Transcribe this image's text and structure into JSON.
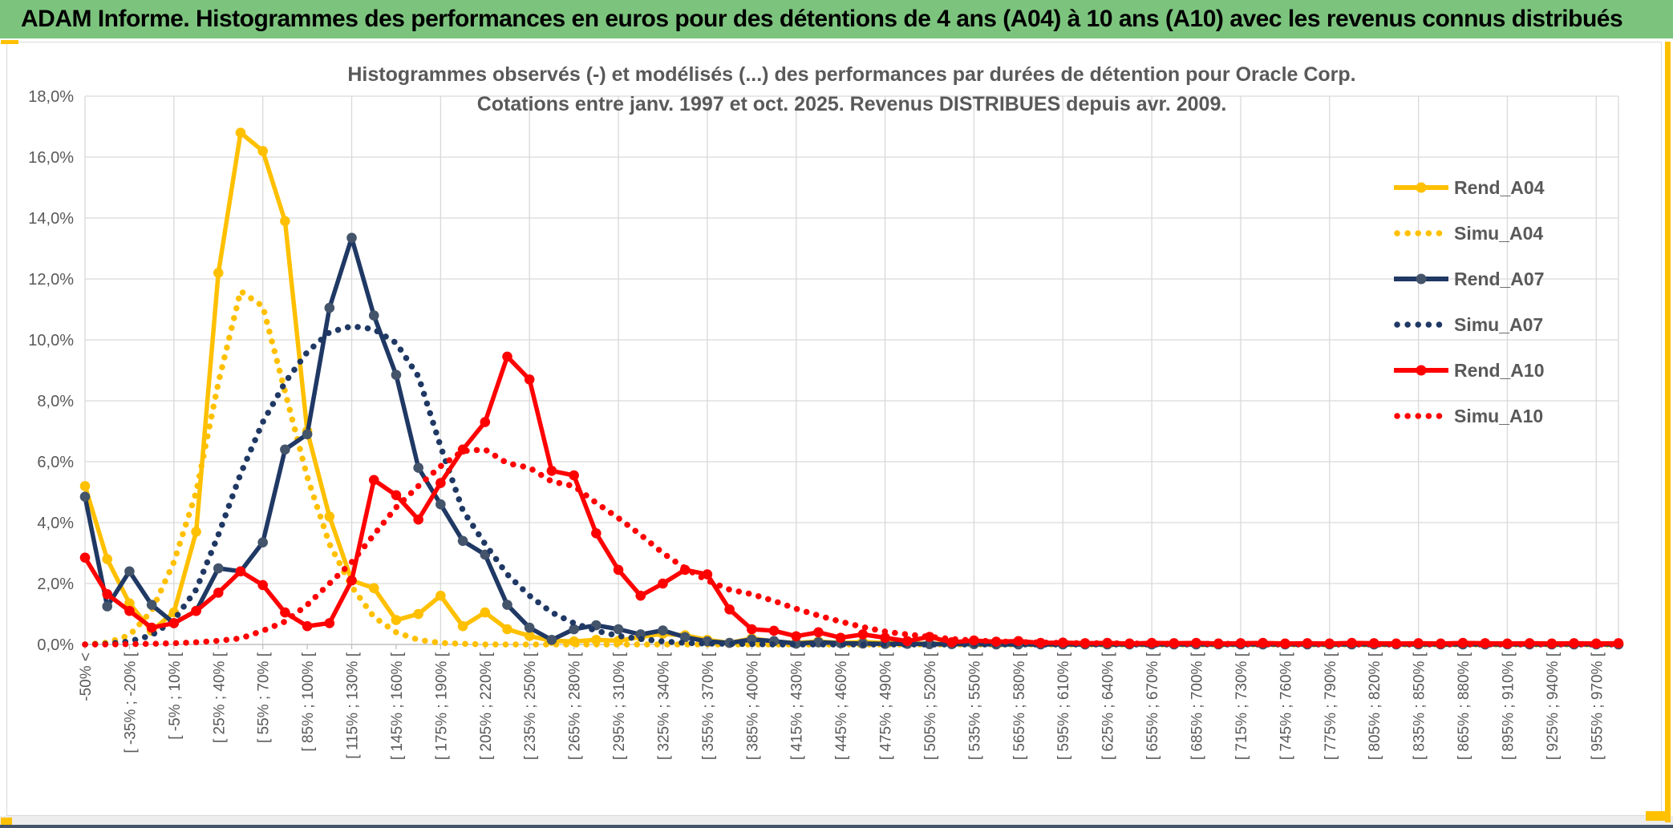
{
  "header": {
    "title": "ADAM Informe. Histogrammes des performances en euros pour des détentions de 4 ans (A04) à 10 ans (A10) avec les revenus connus distribués"
  },
  "page": {
    "accent_color": "#ffc000",
    "header_bg": "#7cc47e",
    "bottom_bar_color": "#44546a"
  },
  "chart_data": {
    "type": "line",
    "title_lines": [
      "Histogrammes observés (-) et modélisés (...) des performances par durées de détention pour Oracle Corp.",
      "Cotations entre janv. 1997 et oct. 2025. Revenus DISTRIBUES depuis avr. 2009."
    ],
    "grid": "on",
    "legend_position": "right",
    "y_axis": {
      "min": 0,
      "max": 18,
      "step": 2,
      "ticks": [
        "0,0%",
        "2,0%",
        "4,0%",
        "6,0%",
        "8,0%",
        "10,0%",
        "12,0%",
        "14,0%",
        "16,0%",
        "18,0%"
      ]
    },
    "x_axis_note": "70 bins of 15% width; every second bin is labeled",
    "categories": [
      "-50% <",
      "[ -35% ; -20% [",
      "[ -5% ; 10% [",
      "[ 25% ; 40% [",
      "[ 55% ; 70% [",
      "[ 85% ; 100% [",
      "[ 115% ; 130% [",
      "[ 145% ; 160% [",
      "[ 175% ; 190% [",
      "[ 205% ; 220% [",
      "[ 235% ; 250% [",
      "[ 265% ; 280% [",
      "[ 295% ; 310% [",
      "[ 325% ; 340% [",
      "[ 355% ; 370% [",
      "[ 385% ; 400% [",
      "[ 415% ; 430% [",
      "[ 445% ; 460% [",
      "[ 475% ; 490% [",
      "[ 505% ; 520% [",
      "[ 535% ; 550% [",
      "[ 565% ; 580% [",
      "[ 595% ; 610% [",
      "[ 625% ; 640% [",
      "[ 655% ; 670% [",
      "[ 685% ; 700% [",
      "[ 715% ; 730% [",
      "[ 745% ; 760% [",
      "[ 775% ; 790% [",
      "[ 805% ; 820% [",
      "[ 835% ; 850% [",
      "[ 865% ; 880% [",
      "[ 895% ; 910% [",
      "[ 925% ; 940% [",
      "[ 955% ; 970% ["
    ],
    "series": [
      {
        "name": "Rend_A04",
        "style": "solid",
        "color": "#ffc000",
        "marker_color": "#ffc000",
        "values": [
          5.2,
          2.8,
          1.35,
          0.45,
          1.05,
          3.7,
          12.2,
          16.8,
          16.2,
          13.9,
          7.0,
          4.2,
          2.1,
          1.85,
          0.8,
          1.0,
          1.6,
          0.6,
          1.05,
          0.5,
          0.28,
          0.12,
          0.1,
          0.15,
          0.12,
          0.25,
          0.35,
          0.3,
          0.15,
          0.05,
          0.2,
          0.1,
          0.05,
          0.1,
          0.05,
          0.08,
          0.05,
          0.03,
          0.03,
          0.02,
          0.02,
          0.02,
          0.02,
          0.02,
          0.02,
          0.02,
          0.02,
          0.02,
          0.02,
          0.02,
          0.02,
          0.02,
          0.02,
          0.02,
          0.02,
          0.02,
          0.02,
          0.02,
          0.02,
          0.02,
          0.02,
          0.02,
          0.02,
          0.02,
          0.02,
          0.02,
          0.02,
          0.02,
          0.02,
          0.02
        ]
      },
      {
        "name": "Simu_A04",
        "style": "dotted",
        "color": "#ffc000",
        "values": [
          0,
          0.06,
          0.3,
          1.1,
          2.7,
          5.0,
          8.6,
          11.6,
          11.1,
          8.3,
          5.5,
          3.3,
          1.9,
          0.9,
          0.4,
          0.15,
          0.05,
          0.02,
          0,
          0,
          0,
          0,
          0,
          0,
          0,
          0,
          0,
          0,
          0,
          0,
          0,
          0,
          0,
          0,
          0,
          0,
          0,
          0,
          0,
          0,
          0,
          0,
          0,
          0,
          0,
          0,
          0,
          0,
          0,
          0,
          0,
          0,
          0,
          0,
          0,
          0,
          0,
          0,
          0,
          0,
          0,
          0,
          0,
          0,
          0,
          0,
          0,
          0,
          0,
          0
        ]
      },
      {
        "name": "Rend_A07",
        "style": "solid",
        "color": "#1f3864",
        "marker_color": "#44546a",
        "values": [
          4.85,
          1.25,
          2.4,
          1.3,
          0.7,
          1.1,
          2.5,
          2.4,
          3.35,
          6.4,
          6.9,
          11.05,
          13.35,
          10.8,
          8.85,
          5.8,
          4.6,
          3.4,
          2.95,
          1.3,
          0.55,
          0.15,
          0.5,
          0.63,
          0.5,
          0.33,
          0.46,
          0.24,
          0.1,
          0.05,
          0.16,
          0.11,
          0.03,
          0.07,
          0.04,
          0.03,
          0.02,
          0.02,
          0.01,
          0.01,
          0.01,
          0,
          0,
          0,
          0,
          0,
          0,
          0,
          0,
          0,
          0,
          0,
          0,
          0,
          0,
          0,
          0,
          0,
          0,
          0,
          0,
          0,
          0,
          0,
          0,
          0,
          0,
          0,
          0,
          0
        ]
      },
      {
        "name": "Simu_A07",
        "style": "dotted",
        "color": "#1f3864",
        "values": [
          0,
          0.02,
          0.1,
          0.3,
          0.8,
          1.8,
          3.6,
          5.6,
          7.3,
          8.6,
          9.6,
          10.25,
          10.45,
          10.35,
          9.9,
          8.8,
          6.5,
          4.4,
          3.3,
          2.3,
          1.6,
          1.05,
          0.7,
          0.45,
          0.28,
          0.18,
          0.1,
          0.05,
          0.03,
          0.02,
          0.01,
          0,
          0,
          0,
          0,
          0,
          0,
          0,
          0,
          0,
          0,
          0,
          0,
          0,
          0,
          0,
          0,
          0,
          0,
          0,
          0,
          0,
          0,
          0,
          0,
          0,
          0,
          0,
          0,
          0,
          0,
          0,
          0,
          0,
          0,
          0,
          0,
          0,
          0,
          0
        ]
      },
      {
        "name": "Rend_A10",
        "style": "solid",
        "color": "#ff0000",
        "marker_color": "#ff0000",
        "values": [
          2.85,
          1.65,
          1.1,
          0.55,
          0.7,
          1.1,
          1.7,
          2.4,
          1.95,
          1.05,
          0.6,
          0.7,
          2.1,
          5.4,
          4.9,
          4.1,
          5.3,
          6.4,
          7.3,
          9.45,
          8.7,
          5.7,
          5.55,
          3.65,
          2.45,
          1.6,
          2.0,
          2.45,
          2.3,
          1.15,
          0.5,
          0.45,
          0.27,
          0.4,
          0.22,
          0.33,
          0.22,
          0.11,
          0.25,
          0.07,
          0.13,
          0.09,
          0.11,
          0.05,
          0.06,
          0.04,
          0.05,
          0.03,
          0.05,
          0.04,
          0.05,
          0.03,
          0.04,
          0.05,
          0.03,
          0.04,
          0.03,
          0.05,
          0.04,
          0.03,
          0.04,
          0.03,
          0.05,
          0.04,
          0.03,
          0.04,
          0.03,
          0.04,
          0.03,
          0.04
        ]
      },
      {
        "name": "Simu_A10",
        "style": "dotted",
        "color": "#ff0000",
        "values": [
          0,
          0,
          0.01,
          0.02,
          0.04,
          0.07,
          0.12,
          0.2,
          0.45,
          0.75,
          1.3,
          2.0,
          2.7,
          3.6,
          4.5,
          5.2,
          5.85,
          6.35,
          6.4,
          5.95,
          5.8,
          5.35,
          5.2,
          4.65,
          4.15,
          3.6,
          3.0,
          2.5,
          2.1,
          1.8,
          1.65,
          1.43,
          1.17,
          0.95,
          0.75,
          0.57,
          0.42,
          0.33,
          0.25,
          0.18,
          0.13,
          0.1,
          0.08,
          0.06,
          0.05,
          0.04,
          0.04,
          0.03,
          0.03,
          0.02,
          0.02,
          0.02,
          0.02,
          0.01,
          0.01,
          0.01,
          0.01,
          0.01,
          0.01,
          0.01,
          0.01,
          0.01,
          0.01,
          0.01,
          0.01,
          0.01,
          0.01,
          0.01,
          0.01,
          0.01
        ]
      }
    ],
    "style": {
      "grid_color": "#d9d9d9",
      "axis_color": "#bfbfbf",
      "text_color": "#595959"
    }
  }
}
